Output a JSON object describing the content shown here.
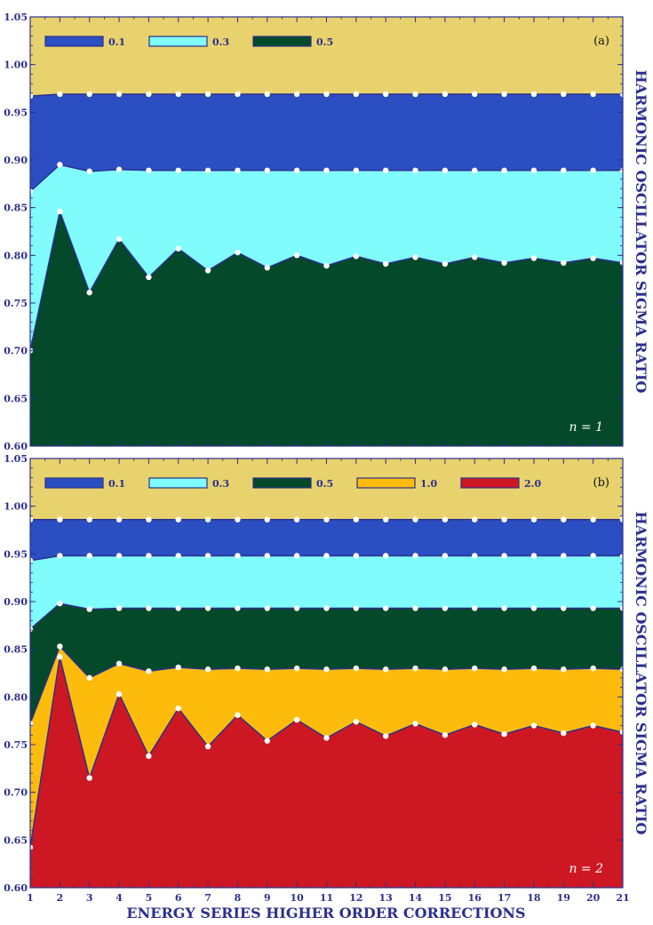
{
  "figure": {
    "xlabel": "ENERGY SERIES HIGHER ORDER CORRECTIONS",
    "ylabel": "HARMONIC OSCILLATOR SIGMA RATIO",
    "axis_color": "#2b2f8f",
    "background_color": "#e8d26d",
    "marker_color": "#ffffff"
  },
  "chart_data": [
    {
      "type": "area",
      "panel_label": "(a)",
      "annotation": "n = 1",
      "x": [
        1,
        2,
        3,
        4,
        5,
        6,
        7,
        8,
        9,
        10,
        11,
        12,
        13,
        14,
        15,
        16,
        17,
        18,
        19,
        20,
        21
      ],
      "xticks": [
        "1",
        "2",
        "3",
        "4",
        "5",
        "6",
        "7",
        "8",
        "9",
        "10",
        "11",
        "12",
        "13",
        "14",
        "15",
        "16",
        "17",
        "18",
        "19",
        "20",
        "21"
      ],
      "ylim": [
        0.6,
        1.05
      ],
      "yticks": [
        "0.60",
        "0.65",
        "0.70",
        "0.75",
        "0.80",
        "0.85",
        "0.90",
        "0.95",
        "1.00",
        "1.05"
      ],
      "legend_position": "top-left",
      "series": [
        {
          "name": "0.5",
          "color": "#04492a",
          "values": [
            0.7,
            0.846,
            0.761,
            0.817,
            0.777,
            0.807,
            0.784,
            0.803,
            0.787,
            0.8,
            0.789,
            0.799,
            0.791,
            0.798,
            0.791,
            0.798,
            0.792,
            0.797,
            0.792,
            0.797,
            0.792
          ]
        },
        {
          "name": "0.3",
          "color": "#80fcfd",
          "values": [
            0.867,
            0.895,
            0.888,
            0.89,
            0.889,
            0.889,
            0.889,
            0.889,
            0.889,
            0.889,
            0.889,
            0.889,
            0.889,
            0.889,
            0.889,
            0.889,
            0.889,
            0.889,
            0.889,
            0.889,
            0.889
          ]
        },
        {
          "name": "0.1",
          "color": "#2b4fc2",
          "values": [
            0.967,
            0.969,
            0.969,
            0.969,
            0.969,
            0.969,
            0.969,
            0.969,
            0.969,
            0.969,
            0.969,
            0.969,
            0.969,
            0.969,
            0.969,
            0.969,
            0.969,
            0.969,
            0.969,
            0.969,
            0.969
          ]
        }
      ]
    },
    {
      "type": "area",
      "panel_label": "(b)",
      "annotation": "n = 2",
      "x": [
        1,
        2,
        3,
        4,
        5,
        6,
        7,
        8,
        9,
        10,
        11,
        12,
        13,
        14,
        15,
        16,
        17,
        18,
        19,
        20,
        21
      ],
      "xticks": [
        "1",
        "2",
        "3",
        "4",
        "5",
        "6",
        "7",
        "8",
        "9",
        "10",
        "11",
        "12",
        "13",
        "14",
        "15",
        "16",
        "17",
        "18",
        "19",
        "20",
        "21"
      ],
      "ylim": [
        0.6,
        1.05
      ],
      "yticks": [
        "0.60",
        "0.65",
        "0.70",
        "0.75",
        "0.80",
        "0.85",
        "0.90",
        "0.95",
        "1.00",
        "1.05"
      ],
      "legend_position": "top-left",
      "series": [
        {
          "name": "2.0",
          "color": "#cd1823",
          "values": [
            0.642,
            0.842,
            0.715,
            0.803,
            0.738,
            0.788,
            0.748,
            0.781,
            0.754,
            0.776,
            0.757,
            0.774,
            0.759,
            0.772,
            0.76,
            0.771,
            0.761,
            0.77,
            0.762,
            0.77,
            0.763
          ]
        },
        {
          "name": "1.0",
          "color": "#fdbc0c",
          "values": [
            0.772,
            0.853,
            0.82,
            0.835,
            0.827,
            0.831,
            0.829,
            0.83,
            0.829,
            0.83,
            0.829,
            0.83,
            0.829,
            0.83,
            0.829,
            0.83,
            0.829,
            0.83,
            0.829,
            0.83,
            0.829
          ]
        },
        {
          "name": "0.5",
          "color": "#04492a",
          "values": [
            0.871,
            0.898,
            0.892,
            0.893,
            0.893,
            0.893,
            0.893,
            0.893,
            0.893,
            0.893,
            0.893,
            0.893,
            0.893,
            0.893,
            0.893,
            0.893,
            0.893,
            0.893,
            0.893,
            0.893,
            0.893
          ]
        },
        {
          "name": "0.3",
          "color": "#80fcfd",
          "values": [
            0.943,
            0.948,
            0.948,
            0.948,
            0.948,
            0.948,
            0.948,
            0.948,
            0.948,
            0.948,
            0.948,
            0.948,
            0.948,
            0.948,
            0.948,
            0.948,
            0.948,
            0.948,
            0.948,
            0.948,
            0.948
          ]
        },
        {
          "name": "0.1",
          "color": "#2b4fc2",
          "values": [
            0.986,
            0.986,
            0.986,
            0.986,
            0.986,
            0.986,
            0.986,
            0.986,
            0.986,
            0.986,
            0.986,
            0.986,
            0.986,
            0.986,
            0.986,
            0.986,
            0.986,
            0.986,
            0.986,
            0.986,
            0.986
          ]
        }
      ]
    }
  ]
}
